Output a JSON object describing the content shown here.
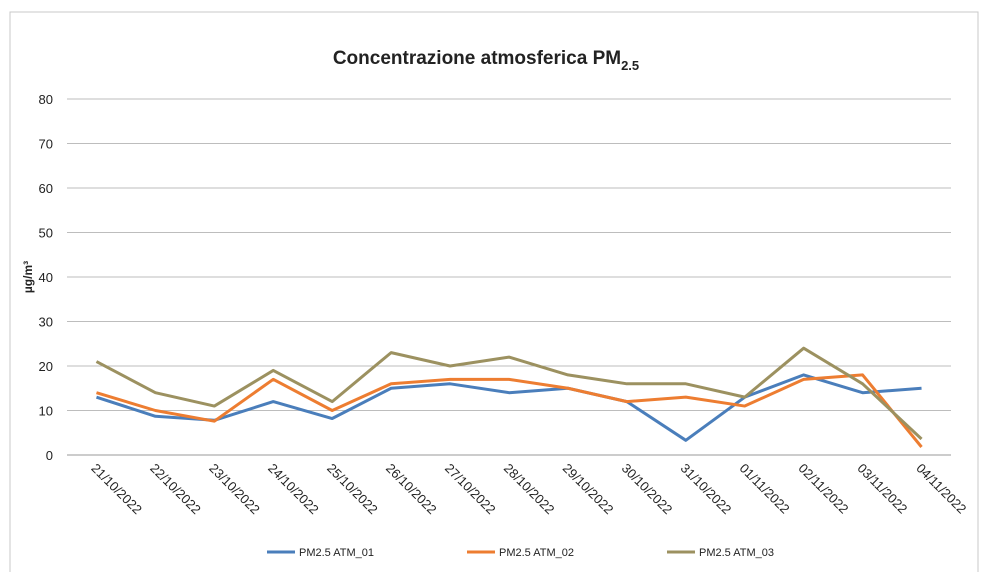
{
  "chart_data": {
    "type": "line",
    "title": "Concentrazione atmosferica PM",
    "title_subscript": "2.5",
    "y_label": "µg/m³",
    "categories": [
      "21/10/2022",
      "22/10/2022",
      "23/10/2022",
      "24/10/2022",
      "25/10/2022",
      "26/10/2022",
      "27/10/2022",
      "28/10/2022",
      "29/10/2022",
      "30/10/2022",
      "31/10/2022",
      "01/11/2022",
      "02/11/2022",
      "03/11/2022",
      "04/11/2022"
    ],
    "series": [
      {
        "name": "PM2.5 ATM_01",
        "color": "#4a7ebb",
        "values": [
          13,
          8.7,
          7.8,
          12,
          8.2,
          15,
          16,
          14,
          15,
          12,
          3.3,
          13,
          18,
          14,
          15
        ]
      },
      {
        "name": "PM2.5 ATM_02",
        "color": "#ed7d31",
        "values": [
          14,
          10,
          7.6,
          17,
          10,
          16,
          17,
          17,
          15,
          12,
          13,
          11,
          17,
          18,
          1.8
        ]
      },
      {
        "name": "PM2.5 ATM_03",
        "color": "#9c9160",
        "values": [
          21,
          14,
          11,
          19,
          12,
          23,
          20,
          22,
          18,
          16,
          16,
          13,
          24,
          16,
          3.6
        ]
      }
    ],
    "ylim": [
      0,
      80
    ],
    "yticks": [
      0,
      10,
      20,
      30,
      40,
      50,
      60,
      70,
      80
    ],
    "grid": true,
    "legend": "bottom"
  }
}
